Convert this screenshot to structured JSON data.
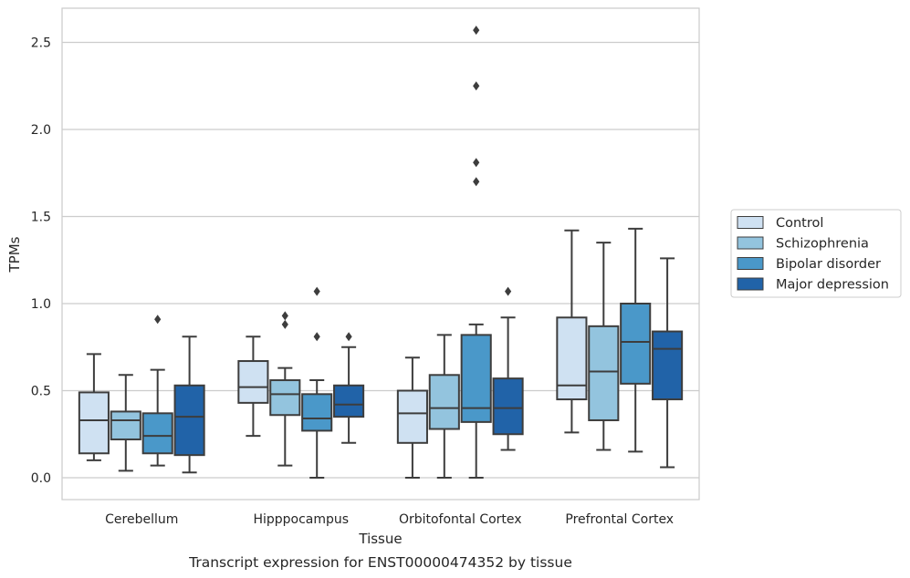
{
  "chart_data": {
    "type": "boxplot",
    "xlabel": "Tissue",
    "ylabel": "TPMs",
    "caption": "Transcript expression for ENST00000474352 by tissue",
    "ylim": [
      -0.12,
      2.7
    ],
    "yticks": [
      "0.0",
      "0.5",
      "1.0",
      "1.5",
      "2.0",
      "2.5"
    ],
    "grid": "horizontal",
    "legend_position": "right",
    "categories": [
      "Cerebellum",
      "Hipppocampus",
      "Orbitofontal Cortex",
      "Prefrontal Cortex"
    ],
    "series": [
      {
        "name": "Control",
        "color": "#cfe1f2",
        "boxes": [
          {
            "whislo": 0.1,
            "q1": 0.14,
            "med": 0.33,
            "q3": 0.49,
            "whishi": 0.71,
            "fliers": []
          },
          {
            "whislo": 0.24,
            "q1": 0.43,
            "med": 0.52,
            "q3": 0.67,
            "whishi": 0.81,
            "fliers": []
          },
          {
            "whislo": 0.0,
            "q1": 0.2,
            "med": 0.37,
            "q3": 0.5,
            "whishi": 0.69,
            "fliers": []
          },
          {
            "whislo": 0.26,
            "q1": 0.45,
            "med": 0.53,
            "q3": 0.92,
            "whishi": 1.42,
            "fliers": []
          }
        ]
      },
      {
        "name": "Schizophrenia",
        "color": "#93c4de",
        "boxes": [
          {
            "whislo": 0.04,
            "q1": 0.22,
            "med": 0.33,
            "q3": 0.38,
            "whishi": 0.59,
            "fliers": []
          },
          {
            "whislo": 0.07,
            "q1": 0.36,
            "med": 0.48,
            "q3": 0.56,
            "whishi": 0.63,
            "fliers": [
              0.88,
              0.93
            ]
          },
          {
            "whislo": 0.0,
            "q1": 0.28,
            "med": 0.4,
            "q3": 0.59,
            "whishi": 0.82,
            "fliers": []
          },
          {
            "whislo": 0.16,
            "q1": 0.33,
            "med": 0.61,
            "q3": 0.87,
            "whishi": 1.35,
            "fliers": []
          }
        ]
      },
      {
        "name": "Bipolar disorder",
        "color": "#4a98c9",
        "boxes": [
          {
            "whislo": 0.07,
            "q1": 0.14,
            "med": 0.24,
            "q3": 0.37,
            "whishi": 0.62,
            "fliers": [
              0.91
            ]
          },
          {
            "whislo": 0.0,
            "q1": 0.27,
            "med": 0.34,
            "q3": 0.48,
            "whishi": 0.56,
            "fliers": [
              0.81,
              1.07
            ]
          },
          {
            "whislo": 0.0,
            "q1": 0.32,
            "med": 0.4,
            "q3": 0.82,
            "whishi": 0.88,
            "fliers": [
              1.7,
              1.81,
              2.25,
              2.57
            ]
          },
          {
            "whislo": 0.15,
            "q1": 0.54,
            "med": 0.78,
            "q3": 1.0,
            "whishi": 1.43,
            "fliers": []
          }
        ]
      },
      {
        "name": "Major depression",
        "color": "#2163a8",
        "boxes": [
          {
            "whislo": 0.03,
            "q1": 0.13,
            "med": 0.35,
            "q3": 0.53,
            "whishi": 0.81,
            "fliers": []
          },
          {
            "whislo": 0.2,
            "q1": 0.35,
            "med": 0.42,
            "q3": 0.53,
            "whishi": 0.75,
            "fliers": [
              0.81
            ]
          },
          {
            "whislo": 0.16,
            "q1": 0.25,
            "med": 0.4,
            "q3": 0.57,
            "whishi": 0.92,
            "fliers": [
              1.07
            ]
          },
          {
            "whislo": 0.06,
            "q1": 0.45,
            "med": 0.74,
            "q3": 0.84,
            "whishi": 1.26,
            "fliers": []
          }
        ]
      }
    ]
  }
}
